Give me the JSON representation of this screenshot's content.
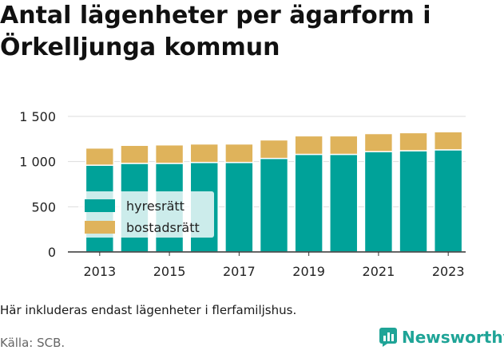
{
  "title": "Antal lägenheter per ägarform i Örkelljunga kommun",
  "note": "Här inkluderas endast lägenheter i flerfamiljshus.",
  "source": "Källa: SCB.",
  "brand": {
    "name": "Newsworthy",
    "icon": "newsworthy-logo-icon"
  },
  "colors": {
    "hyresratt": "#00a299",
    "bostadsratt": "#dfb35b",
    "grid": "#dddddd",
    "axis": "#333333"
  },
  "chart_data": {
    "type": "bar",
    "stacked": true,
    "categories": [
      "2013",
      "2014",
      "2015",
      "2016",
      "2017",
      "2018",
      "2019",
      "2020",
      "2021",
      "2022",
      "2023"
    ],
    "x_tick_labels": [
      "2013",
      "2015",
      "2017",
      "2019",
      "2021",
      "2023"
    ],
    "series": [
      {
        "name": "hyresrätt",
        "color": "#00a299",
        "values": [
          960,
          980,
          980,
          990,
          990,
          1035,
          1080,
          1080,
          1110,
          1120,
          1130
        ]
      },
      {
        "name": "bostadsrätt",
        "color": "#dfb35b",
        "values": [
          190,
          200,
          205,
          205,
          205,
          205,
          205,
          205,
          200,
          200,
          200
        ]
      }
    ],
    "ylim": [
      0,
      1500
    ],
    "y_ticks": [
      0,
      500,
      1000,
      1500
    ],
    "y_tick_labels": [
      "0",
      "500",
      "1 000",
      "1 500"
    ],
    "grid": true,
    "legend_position": "left"
  }
}
